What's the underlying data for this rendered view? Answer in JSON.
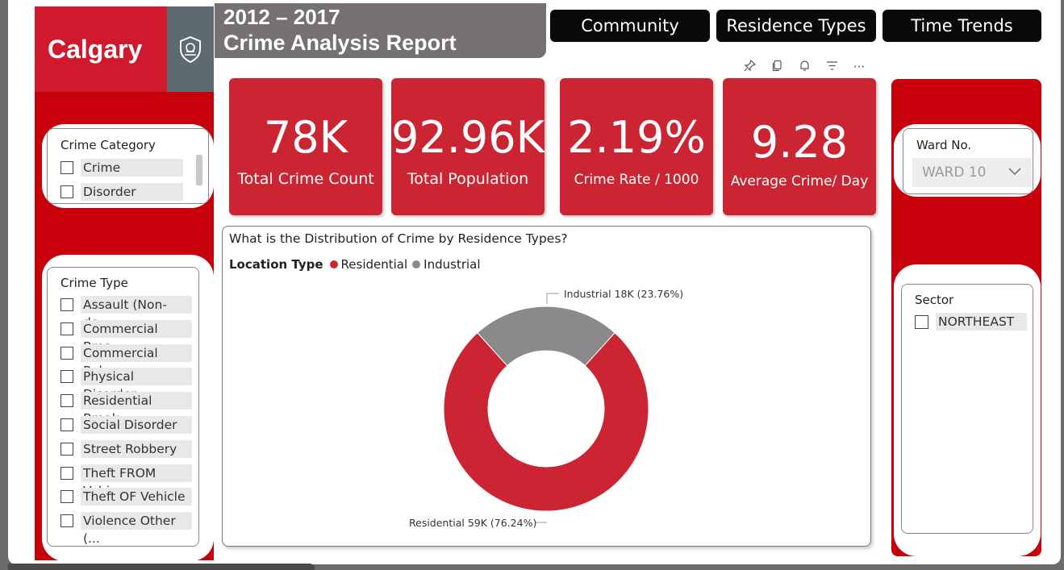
{
  "logo": {
    "text": "Calgary",
    "icon": "city-crest-icon"
  },
  "title": {
    "line1": "2012 – 2017",
    "line2": "Crime Analysis Report"
  },
  "nav": [
    {
      "label": "Community"
    },
    {
      "label": "Residence Types"
    },
    {
      "label": "Time Trends"
    }
  ],
  "toolbar": {
    "icons": [
      "pin-icon",
      "copy-icon",
      "bell-icon",
      "filter-icon",
      "more-options-icon"
    ],
    "more": "···"
  },
  "kpis": [
    {
      "value": "78K",
      "label": "Total Crime Count"
    },
    {
      "value": "92.96K",
      "label": "Total Population"
    },
    {
      "value": "2.19%",
      "label": "Crime Rate / 1000"
    },
    {
      "value": "9.28",
      "label": "Average Crime/ Day"
    }
  ],
  "crime_category": {
    "title": "Crime Category",
    "items": [
      "Crime",
      "Disorder"
    ]
  },
  "crime_type": {
    "title": "Crime Type",
    "items": [
      "Assault (Non-do...",
      "Commercial Brea...",
      "Commercial Rob...",
      "Physical Disorder",
      "Residential Break...",
      "Social Disorder",
      "Street Robbery",
      "Theft FROM Vehi...",
      "Theft OF Vehicle",
      "Violence Other (..."
    ]
  },
  "ward": {
    "title": "Ward No.",
    "selected": "WARD 10"
  },
  "sector": {
    "title": "Sector",
    "items": [
      "NORTHEAST"
    ]
  },
  "colors": {
    "residential": "#cb2534",
    "industrial": "#8a8a8a",
    "accent_red": "#c8000c"
  },
  "chart_data": {
    "type": "pie",
    "title": "What is the Distribution of Crime by Residence Types?",
    "legend_title": "Location Type",
    "legend_placement": "top-left",
    "donut": true,
    "categories": [
      "Residential",
      "Industrial"
    ],
    "values": [
      59,
      18
    ],
    "value_labels": [
      "59K",
      "18K"
    ],
    "percent_labels": [
      "76.24%",
      "23.76%"
    ],
    "data_labels": [
      "Residential 59K (76.24%)",
      "Industrial 18K (23.76%)"
    ]
  }
}
